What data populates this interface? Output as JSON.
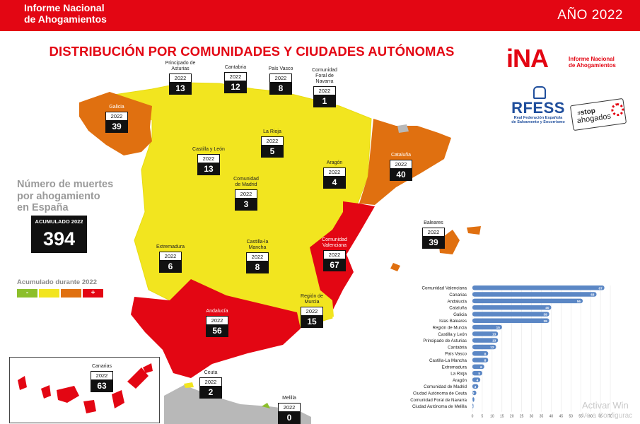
{
  "header": {
    "brand": "Informe Nacional\nde Ahogamientos",
    "year": "AÑO 2022"
  },
  "title": "DISTRIBUCIÓN POR COMUNIDADES Y CIUDADES AUTÓNOMAS",
  "side": {
    "label": "Número de muertes\npor ahogamiento\nen España",
    "accum_label": "ACUMULADO 2022",
    "accum_value": "394",
    "scale_title": "Acumulado durante 2022",
    "scale_minus": "-",
    "scale_plus": "+"
  },
  "colors": {
    "red": "#e30613",
    "orange": "#e07010",
    "yellow": "#f2e51f",
    "green": "#8cbf2b",
    "bar": "#5b87c5",
    "grey": "#b8b8b8"
  },
  "regions": [
    {
      "name": "Principado de\nAsturias",
      "year": "2022",
      "value": "13"
    },
    {
      "name": "Cantabria",
      "year": "2022",
      "value": "12"
    },
    {
      "name": "País Vasco",
      "year": "2022",
      "value": "8"
    },
    {
      "name": "Comunidad\nForal de\nNavarra",
      "year": "2022",
      "value": "1"
    },
    {
      "name": "Galicia",
      "year": "2022",
      "value": "39"
    },
    {
      "name": "La Rioja",
      "year": "2022",
      "value": "5"
    },
    {
      "name": "Castilla y León",
      "year": "2022",
      "value": "13"
    },
    {
      "name": "Cataluña",
      "year": "2022",
      "value": "40"
    },
    {
      "name": "Aragón",
      "year": "2022",
      "value": "4"
    },
    {
      "name": "Comunidad\nde Madrid",
      "year": "2022",
      "value": "3"
    },
    {
      "name": "Baleares",
      "year": "2022",
      "value": "39"
    },
    {
      "name": "Extremadura",
      "year": "2022",
      "value": "6"
    },
    {
      "name": "Castilla-la Mancha",
      "year": "2022",
      "value": "8"
    },
    {
      "name": "Comunidad\nValenciana",
      "year": "2022",
      "value": "67"
    },
    {
      "name": "Región de\nMurcia",
      "year": "2022",
      "value": "15"
    },
    {
      "name": "Andalucía",
      "year": "2022",
      "value": "56"
    },
    {
      "name": "Canarias",
      "year": "2022",
      "value": "63"
    },
    {
      "name": "Ceuta",
      "year": "2022",
      "value": "2"
    },
    {
      "name": "Melilla",
      "year": "2022",
      "value": "0"
    }
  ],
  "logos": {
    "ina": "iNA",
    "ina_small": "RFESS",
    "ina_sub": "Informe Nacional\nde Ahogamientos",
    "rfess": "RFESS",
    "rfess_sub": "Real Federación Española\nde Salvamento y Socorrismo",
    "stop_small": "#",
    "stop_bold": "stop",
    "stop_text": "ahogados"
  },
  "watermark": {
    "line1": "Activar Win",
    "line2": "Ve a Configurac"
  },
  "chart_data": {
    "type": "bar",
    "orientation": "horizontal",
    "categories": [
      "Comunidad Valenciana",
      "Canarias",
      "Andalucía",
      "Cataluña",
      "Galicia",
      "Islas Baleares",
      "Región de Murcia",
      "Castilla y León",
      "Principado de Asturias",
      "Cantabria",
      "País Vasco",
      "Castilla-La Mancha",
      "Extremadura",
      "La Rioja",
      "Aragón",
      "Comunidad de Madrid",
      "Ciudad Autónoma de Ceuta",
      "Comunidad Foral de Navarra",
      "Ciudad Autónoma de Melilla"
    ],
    "values": [
      67,
      63,
      56,
      40,
      39,
      39,
      15,
      13,
      13,
      12,
      8,
      8,
      6,
      5,
      4,
      3,
      2,
      1,
      0
    ],
    "xlim": [
      0,
      70
    ],
    "xticks": [
      "0",
      "5",
      "10",
      "15",
      "20",
      "25",
      "30",
      "35",
      "40",
      "45",
      "50",
      "55",
      "60",
      "65",
      "70"
    ],
    "grid": true
  }
}
